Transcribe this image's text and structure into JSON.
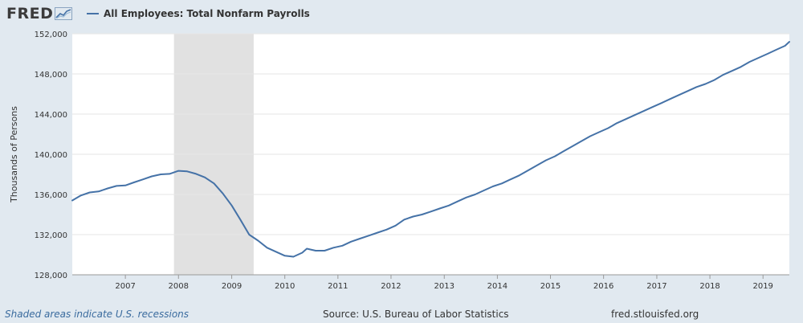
{
  "header": {
    "logo": "FRED",
    "series_name": "All Employees: Total Nonfarm Payrolls"
  },
  "footer": {
    "note": "Shaded areas indicate U.S. recessions",
    "source": "Source: U.S. Bureau of Labor Statistics",
    "site": "fred.stlouisfed.org"
  },
  "colors": {
    "line": "#4572a7",
    "recession": "#e1e1e1",
    "background": "#e1e9f0",
    "plot": "#ffffff"
  },
  "chart_data": {
    "type": "line",
    "title": "",
    "xlabel": "",
    "ylabel": "Thousands of Persons",
    "xlim": [
      "2006-01-01",
      "2019-07-01"
    ],
    "ylim": [
      128000,
      152000
    ],
    "grid": true,
    "yticks": [
      {
        "value": 128000,
        "label": "128,000"
      },
      {
        "value": 132000,
        "label": "132,000"
      },
      {
        "value": 136000,
        "label": "136,000"
      },
      {
        "value": 140000,
        "label": "140,000"
      },
      {
        "value": 144000,
        "label": "144,000"
      },
      {
        "value": 148000,
        "label": "148,000"
      },
      {
        "value": 152000,
        "label": "152,000"
      }
    ],
    "xticks": [
      {
        "value": "2007-01-01",
        "label": "2007"
      },
      {
        "value": "2008-01-01",
        "label": "2008"
      },
      {
        "value": "2009-01-01",
        "label": "2009"
      },
      {
        "value": "2010-01-01",
        "label": "2010"
      },
      {
        "value": "2011-01-01",
        "label": "2011"
      },
      {
        "value": "2012-01-01",
        "label": "2012"
      },
      {
        "value": "2013-01-01",
        "label": "2013"
      },
      {
        "value": "2014-01-01",
        "label": "2014"
      },
      {
        "value": "2015-01-01",
        "label": "2015"
      },
      {
        "value": "2016-01-01",
        "label": "2016"
      },
      {
        "value": "2017-01-01",
        "label": "2017"
      },
      {
        "value": "2018-01-01",
        "label": "2018"
      },
      {
        "value": "2019-01-01",
        "label": "2019"
      }
    ],
    "recessions": [
      {
        "start": "2007-12-01",
        "end": "2009-06-01"
      }
    ],
    "series": [
      {
        "name": "All Employees: Total Nonfarm Payrolls",
        "points": [
          [
            "2006-01-01",
            135400
          ],
          [
            "2006-03-01",
            135900
          ],
          [
            "2006-05-01",
            136200
          ],
          [
            "2006-07-01",
            136300
          ],
          [
            "2006-09-01",
            136600
          ],
          [
            "2006-11-01",
            136850
          ],
          [
            "2007-01-01",
            136900
          ],
          [
            "2007-03-01",
            137200
          ],
          [
            "2007-05-01",
            137500
          ],
          [
            "2007-07-01",
            137800
          ],
          [
            "2007-09-01",
            138000
          ],
          [
            "2007-11-01",
            138050
          ],
          [
            "2008-01-01",
            138350
          ],
          [
            "2008-03-01",
            138300
          ],
          [
            "2008-05-01",
            138050
          ],
          [
            "2008-07-01",
            137700
          ],
          [
            "2008-09-01",
            137100
          ],
          [
            "2008-11-01",
            136100
          ],
          [
            "2009-01-01",
            134900
          ],
          [
            "2009-03-01",
            133500
          ],
          [
            "2009-05-01",
            132000
          ],
          [
            "2009-07-01",
            131400
          ],
          [
            "2009-09-01",
            130700
          ],
          [
            "2009-11-01",
            130300
          ],
          [
            "2010-01-01",
            129900
          ],
          [
            "2010-03-01",
            129800
          ],
          [
            "2010-05-01",
            130200
          ],
          [
            "2010-06-01",
            130600
          ],
          [
            "2010-08-01",
            130400
          ],
          [
            "2010-10-01",
            130400
          ],
          [
            "2010-12-01",
            130700
          ],
          [
            "2011-02-01",
            130900
          ],
          [
            "2011-04-01",
            131300
          ],
          [
            "2011-06-01",
            131600
          ],
          [
            "2011-08-01",
            131900
          ],
          [
            "2011-10-01",
            132200
          ],
          [
            "2011-12-01",
            132500
          ],
          [
            "2012-02-01",
            132900
          ],
          [
            "2012-04-01",
            133500
          ],
          [
            "2012-06-01",
            133800
          ],
          [
            "2012-08-01",
            134000
          ],
          [
            "2012-10-01",
            134300
          ],
          [
            "2012-12-01",
            134600
          ],
          [
            "2013-02-01",
            134900
          ],
          [
            "2013-04-01",
            135300
          ],
          [
            "2013-06-01",
            135700
          ],
          [
            "2013-08-01",
            136000
          ],
          [
            "2013-10-01",
            136400
          ],
          [
            "2013-12-01",
            136800
          ],
          [
            "2014-02-01",
            137100
          ],
          [
            "2014-04-01",
            137500
          ],
          [
            "2014-06-01",
            137900
          ],
          [
            "2014-08-01",
            138400
          ],
          [
            "2014-10-01",
            138900
          ],
          [
            "2014-12-01",
            139400
          ],
          [
            "2015-02-01",
            139800
          ],
          [
            "2015-04-01",
            140300
          ],
          [
            "2015-06-01",
            140800
          ],
          [
            "2015-08-01",
            141300
          ],
          [
            "2015-10-01",
            141800
          ],
          [
            "2015-12-01",
            142200
          ],
          [
            "2016-02-01",
            142600
          ],
          [
            "2016-04-01",
            143100
          ],
          [
            "2016-06-01",
            143500
          ],
          [
            "2016-08-01",
            143900
          ],
          [
            "2016-10-01",
            144300
          ],
          [
            "2016-12-01",
            144700
          ],
          [
            "2017-02-01",
            145100
          ],
          [
            "2017-04-01",
            145500
          ],
          [
            "2017-06-01",
            145900
          ],
          [
            "2017-08-01",
            146300
          ],
          [
            "2017-10-01",
            146700
          ],
          [
            "2017-12-01",
            147000
          ],
          [
            "2018-02-01",
            147400
          ],
          [
            "2018-04-01",
            147900
          ],
          [
            "2018-06-01",
            148300
          ],
          [
            "2018-08-01",
            148700
          ],
          [
            "2018-10-01",
            149200
          ],
          [
            "2018-12-01",
            149600
          ],
          [
            "2019-02-01",
            150000
          ],
          [
            "2019-04-01",
            150400
          ],
          [
            "2019-06-01",
            150800
          ],
          [
            "2019-07-01",
            151200
          ]
        ]
      }
    ]
  }
}
